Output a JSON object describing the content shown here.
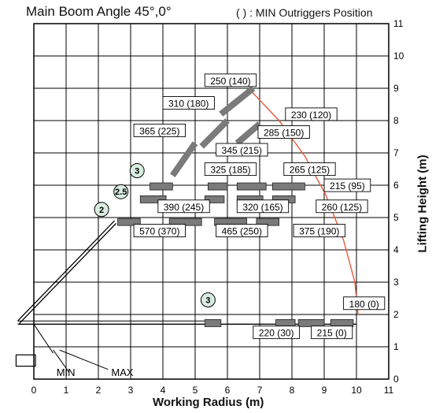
{
  "title": "Main Boom Angle 45°,0°",
  "note": "( ) : MIN Outriggers Position",
  "xaxis": {
    "label": "Working Radius (m)",
    "ticks": [
      "0",
      "1",
      "2",
      "3",
      "4",
      "5",
      "6",
      "7",
      "8",
      "9",
      "10",
      "11"
    ]
  },
  "yaxis": {
    "label": "Lifting Height (m)",
    "ticks": [
      "0",
      "1",
      "2",
      "3",
      "4",
      "5",
      "6",
      "7",
      "8",
      "9",
      "10",
      "11"
    ]
  },
  "base_labels": {
    "min": "MIN",
    "max": "MAX"
  },
  "jib_markers": [
    {
      "text": "2",
      "x": 2.1,
      "y": 5.25
    },
    {
      "text": "2.5",
      "x": 2.7,
      "y": 5.8
    },
    {
      "text": "3",
      "x": 3.2,
      "y": 6.45
    },
    {
      "text": "3",
      "x": 5.4,
      "y": 2.45
    }
  ],
  "capacity_labels": [
    {
      "text": "250 (140)",
      "x": 5.3,
      "y": 9.15
    },
    {
      "text": "310 (180)",
      "x": 4.0,
      "y": 8.45
    },
    {
      "text": "230 (120)",
      "x": 7.8,
      "y": 8.1
    },
    {
      "text": "365 (225)",
      "x": 3.1,
      "y": 7.6
    },
    {
      "text": "285 (150)",
      "x": 6.95,
      "y": 7.55
    },
    {
      "text": "345 (215)",
      "x": 5.65,
      "y": 7.0
    },
    {
      "text": "325 (185)",
      "x": 5.3,
      "y": 6.4
    },
    {
      "text": "265 (125)",
      "x": 7.75,
      "y": 6.4
    },
    {
      "text": "215 (95)",
      "x": 9.0,
      "y": 5.9
    },
    {
      "text": "390 (245)",
      "x": 3.85,
      "y": 5.25
    },
    {
      "text": "320 (165)",
      "x": 6.3,
      "y": 5.25
    },
    {
      "text": "260 (125)",
      "x": 8.75,
      "y": 5.25
    },
    {
      "text": "570 (370)",
      "x": 3.1,
      "y": 4.5
    },
    {
      "text": "465 (250)",
      "x": 5.65,
      "y": 4.5
    },
    {
      "text": "375 (190)",
      "x": 8.05,
      "y": 4.5
    },
    {
      "text": "180 (0)",
      "x": 9.6,
      "y": 2.25
    },
    {
      "text": "220 (30)",
      "x": 6.8,
      "y": 1.35
    },
    {
      "text": "215 (0)",
      "x": 8.6,
      "y": 1.35
    }
  ],
  "booms": [
    {
      "name": "telescoping boom 45 deg",
      "points": [
        [
          -0.5,
          1.8
        ],
        [
          0.2,
          2.4
        ],
        [
          2.45,
          4.85
        ],
        [
          2.3,
          4.85
        ]
      ]
    },
    {
      "name": "jib 2 m",
      "points": [
        [
          2.45,
          4.85
        ],
        [
          3.1,
          4.85
        ],
        [
          7.6,
          4.85
        ]
      ]
    },
    {
      "name": "jib upper",
      "points": [
        [
          2.7,
          5.55
        ],
        [
          5.3,
          5.55
        ],
        [
          8.3,
          5.55
        ]
      ]
    },
    {
      "name": "jib upper 2",
      "points": [
        [
          3.1,
          5.9
        ],
        [
          5.3,
          5.9
        ],
        [
          9.0,
          5.9
        ]
      ]
    },
    {
      "name": "horizontal boom",
      "points": [
        [
          -0.5,
          1.7
        ],
        [
          5.3,
          1.7
        ],
        [
          10.0,
          1.7
        ]
      ]
    }
  ],
  "colors": {
    "grid": "#000000",
    "arc": "#e8593c",
    "jib_fill": "#7a7a7a",
    "marker_fill": "#d8ece0"
  }
}
